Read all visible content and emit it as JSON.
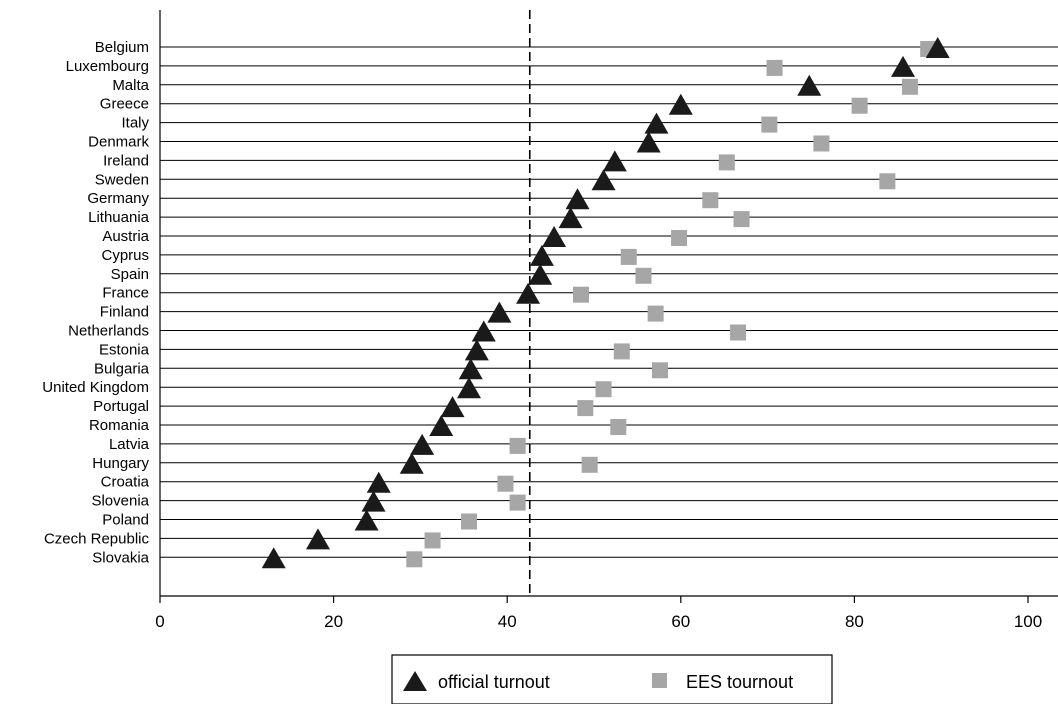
{
  "chart_data": {
    "type": "scatter",
    "categories": [
      "Belgium",
      "Luxembourg",
      "Malta",
      "Greece",
      "Italy",
      "Denmark",
      "Ireland",
      "Sweden",
      "Germany",
      "Lithuania",
      "Austria",
      "Cyprus",
      "Spain",
      "France",
      "Finland",
      "Netherlands",
      "Estonia",
      "Bulgaria",
      "United Kingdom",
      "Portugal",
      "Romania",
      "Latvia",
      "Hungary",
      "Croatia",
      "Slovenia",
      "Poland",
      "Czech Republic",
      "Slovakia"
    ],
    "series": [
      {
        "name": "official turnout",
        "marker": "triangle",
        "color": "#1a1a1a",
        "values": [
          89.6,
          85.6,
          74.8,
          60.0,
          57.2,
          56.3,
          52.4,
          51.1,
          48.1,
          47.3,
          45.4,
          44.0,
          43.8,
          42.4,
          39.1,
          37.3,
          36.5,
          35.8,
          35.6,
          33.7,
          32.4,
          30.2,
          29.0,
          25.2,
          24.6,
          23.8,
          18.2,
          13.1
        ]
      },
      {
        "name": "EES tournout",
        "marker": "square",
        "color": "#a6a6a6",
        "values": [
          88.5,
          70.8,
          86.4,
          80.6,
          70.2,
          76.2,
          65.3,
          83.8,
          63.4,
          67.0,
          59.8,
          54.0,
          55.7,
          48.5,
          57.1,
          66.6,
          53.2,
          57.6,
          51.1,
          49.0,
          52.8,
          41.2,
          49.5,
          39.8,
          41.2,
          35.6,
          31.4,
          29.3
        ]
      }
    ],
    "reference_line": {
      "x": 42.6,
      "style": "dashed"
    },
    "xlim": [
      0,
      100
    ],
    "xticks": [
      "0",
      "20",
      "40",
      "60",
      "80",
      "100"
    ],
    "xtick_values": [
      0,
      20,
      40,
      60,
      80,
      100
    ],
    "xlabel": "",
    "ylabel": "",
    "title": "",
    "grid": "horizontal",
    "legend_position": "bottom-center"
  },
  "legend": {
    "official_label": "official turnout",
    "ees_label": "EES tournout"
  }
}
